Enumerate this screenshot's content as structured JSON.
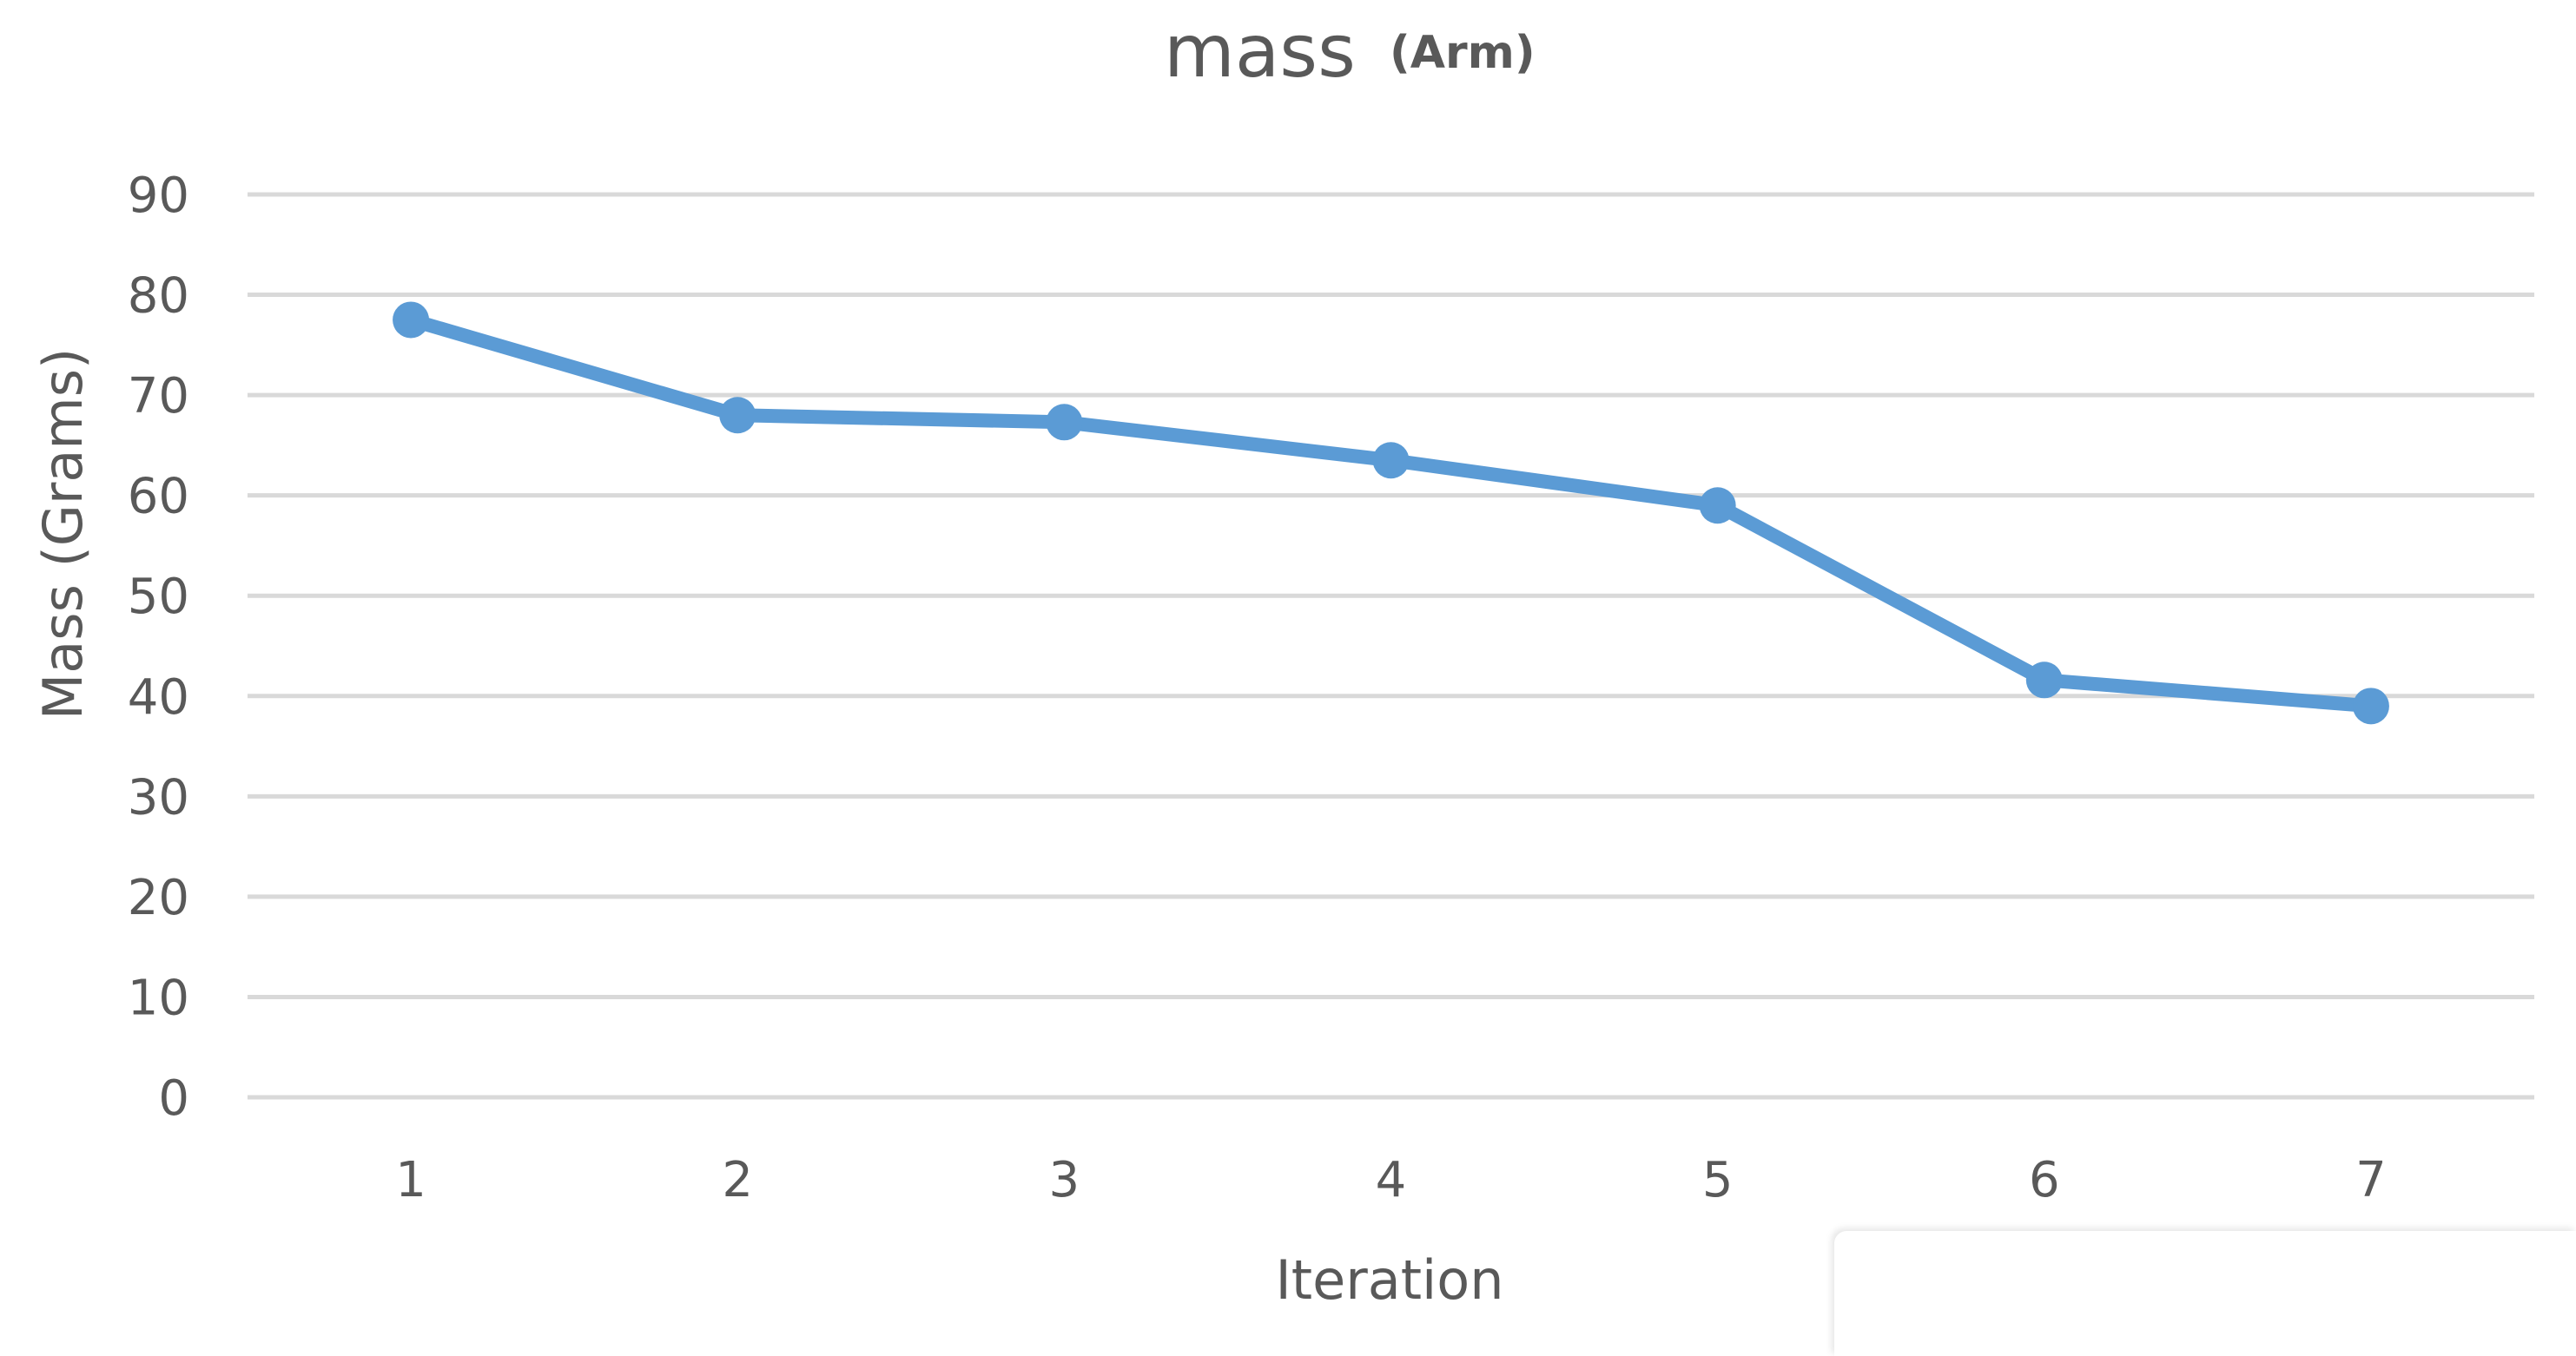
{
  "chart_data": {
    "type": "line",
    "title": "mass",
    "title_suffix": "(Arm)",
    "xlabel": "Iteration",
    "ylabel": "Mass (Grams)",
    "categories": [
      "1",
      "2",
      "3",
      "4",
      "5",
      "6",
      "7"
    ],
    "series": [
      {
        "values": [
          77.5,
          68,
          67.3,
          63.5,
          59,
          41.6,
          39
        ]
      }
    ],
    "ylim": [
      0,
      90
    ],
    "yticks": [
      0,
      10,
      20,
      30,
      40,
      50,
      60,
      70,
      80,
      90
    ],
    "grid": true,
    "legend": "none"
  },
  "colors": {
    "series": "#5b9bd5",
    "grid": "#d9d9d9",
    "text": "#595959"
  }
}
